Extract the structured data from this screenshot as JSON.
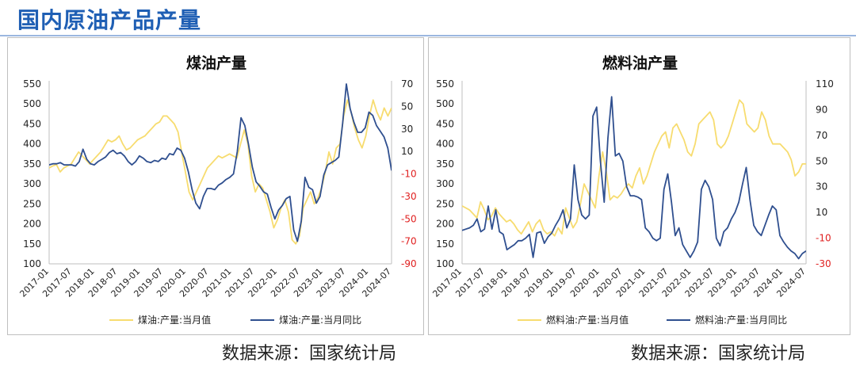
{
  "page": {
    "title": "国内原油产品产量"
  },
  "colors": {
    "level": "#f7dc6f",
    "yoy": "#2f4f8f",
    "negative_tick": "#e02020",
    "title": "#1f5fb4"
  },
  "charts": {
    "left": {
      "source": "数据来源：国家统计局"
    },
    "right": {
      "source": "数据来源：国家统计局"
    }
  },
  "chart_data": [
    {
      "type": "line",
      "title": "煤油产量",
      "x_labels": [
        "2017-01",
        "2017-07",
        "2018-01",
        "2018-07",
        "2019-01",
        "2019-07",
        "2020-01",
        "2020-07",
        "2021-01",
        "2021-07",
        "2022-01",
        "2022-07",
        "2023-01",
        "2023-07",
        "2024-01",
        "2024-07"
      ],
      "x_range": [
        0,
        92
      ],
      "y_left": {
        "range": [
          100,
          550
        ],
        "ticks": [
          100,
          150,
          200,
          250,
          300,
          350,
          400,
          450,
          500,
          550
        ]
      },
      "y_right": {
        "range": [
          -90,
          70
        ],
        "ticks": [
          -90,
          -70,
          -50,
          -30,
          -10,
          10,
          30,
          50,
          70
        ]
      },
      "legend": "bottom",
      "series": [
        {
          "name": "煤油:产量:当月值",
          "axis": "left",
          "color": "#f7dc6f",
          "values": [
            340,
            345,
            348,
            330,
            340,
            345,
            350,
            365,
            380,
            370,
            360,
            350,
            360,
            370,
            380,
            395,
            410,
            405,
            410,
            420,
            400,
            385,
            390,
            400,
            410,
            415,
            420,
            430,
            440,
            450,
            455,
            470,
            470,
            460,
            450,
            430,
            380,
            330,
            280,
            260,
            280,
            300,
            320,
            340,
            350,
            360,
            370,
            365,
            370,
            375,
            370,
            365,
            400,
            435,
            400,
            320,
            280,
            300,
            290,
            260,
            230,
            190,
            210,
            240,
            260,
            230,
            160,
            150,
            170,
            240,
            260,
            280,
            250,
            265,
            290,
            330,
            380,
            350,
            390,
            400,
            470,
            510,
            480,
            440,
            410,
            390,
            420,
            470,
            510,
            480,
            460,
            490,
            470,
            490
          ]
        },
        {
          "name": "煤油:产量:当月同比",
          "axis": "right",
          "color": "#2f4f8f",
          "values": [
            -2,
            -1,
            -1,
            0,
            -2,
            -2,
            -2,
            -3,
            1,
            12,
            3,
            -1,
            -2,
            1,
            3,
            5,
            9,
            11,
            8,
            9,
            6,
            1,
            -2,
            1,
            6,
            4,
            1,
            0,
            2,
            1,
            4,
            3,
            8,
            7,
            13,
            11,
            4,
            -8,
            -24,
            -36,
            -41,
            -30,
            -23,
            -23,
            -24,
            -20,
            -18,
            -15,
            -13,
            -10,
            10,
            40,
            33,
            16,
            -4,
            -17,
            -21,
            -26,
            -28,
            -40,
            -50,
            -42,
            -38,
            -32,
            -30,
            -60,
            -70,
            -52,
            -13,
            -22,
            -24,
            -36,
            -30,
            -11,
            -2,
            0,
            2,
            5,
            35,
            70,
            48,
            36,
            27,
            27,
            31,
            45,
            42,
            33,
            28,
            23,
            13,
            -7
          ]
        }
      ]
    },
    {
      "type": "line",
      "title": "燃料油产量",
      "x_labels": [
        "2017-01",
        "2017-07",
        "2018-01",
        "2018-07",
        "2019-01",
        "2019-07",
        "2020-01",
        "2020-07",
        "2021-01",
        "2021-07",
        "2022-01",
        "2022-07",
        "2023-01",
        "2023-07",
        "2024-01",
        "2024-07"
      ],
      "x_range": [
        0,
        92
      ],
      "y_left": {
        "range": [
          100,
          550
        ],
        "ticks": [
          100,
          150,
          200,
          250,
          300,
          350,
          400,
          450,
          500,
          550
        ]
      },
      "y_right": {
        "range": [
          -30,
          110
        ],
        "ticks": [
          -30,
          -10,
          10,
          30,
          50,
          70,
          90,
          110
        ]
      },
      "legend": "bottom",
      "series": [
        {
          "name": "燃料油:产量:当月值",
          "axis": "left",
          "color": "#f7dc6f",
          "values": [
            245,
            240,
            235,
            225,
            215,
            255,
            235,
            210,
            220,
            240,
            225,
            215,
            205,
            210,
            200,
            185,
            175,
            190,
            205,
            180,
            200,
            210,
            185,
            175,
            180,
            170,
            190,
            175,
            240,
            215,
            190,
            205,
            250,
            300,
            280,
            260,
            240,
            320,
            380,
            330,
            260,
            270,
            265,
            275,
            290,
            300,
            290,
            320,
            340,
            300,
            320,
            350,
            380,
            400,
            420,
            430,
            390,
            440,
            450,
            430,
            410,
            380,
            370,
            400,
            450,
            460,
            470,
            480,
            460,
            400,
            390,
            400,
            420,
            450,
            480,
            510,
            500,
            450,
            440,
            430,
            440,
            480,
            460,
            420,
            400,
            400,
            400,
            390,
            380,
            360,
            320,
            330,
            350,
            350
          ]
        },
        {
          "name": "燃料油:产量:当月同比",
          "axis": "right",
          "color": "#2f4f8f",
          "values": [
            -4,
            -3,
            -2,
            0,
            5,
            -5,
            -3,
            15,
            -3,
            12,
            -5,
            -7,
            -19,
            -17,
            -15,
            -12,
            -12,
            -10,
            -7,
            -25,
            -6,
            -5,
            -14,
            -9,
            -6,
            0,
            5,
            12,
            -2,
            5,
            47,
            20,
            8,
            5,
            8,
            85,
            92,
            50,
            18,
            68,
            100,
            54,
            56,
            50,
            30,
            23,
            23,
            22,
            20,
            -2,
            -5,
            -10,
            -12,
            -10,
            28,
            40,
            18,
            -8,
            -2,
            -15,
            -20,
            -25,
            -20,
            -13,
            28,
            35,
            30,
            20,
            -10,
            -16,
            -5,
            -2,
            5,
            10,
            18,
            32,
            45,
            20,
            0,
            -5,
            -8,
            0,
            8,
            15,
            12,
            -8,
            -13,
            -17,
            -20,
            -22,
            -26,
            -22,
            -20
          ]
        }
      ]
    }
  ]
}
